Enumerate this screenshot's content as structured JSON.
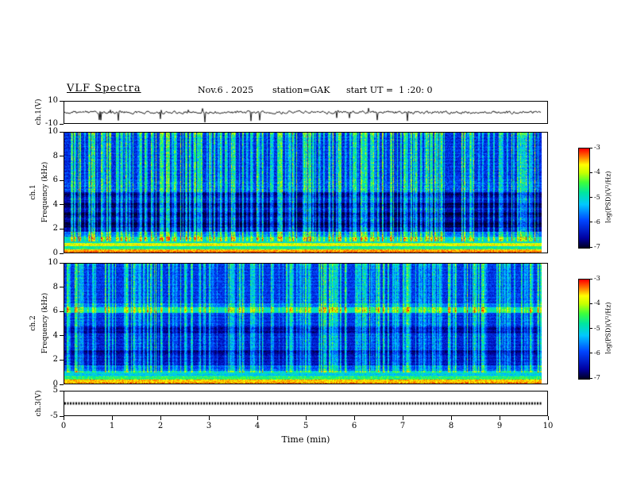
{
  "header": {
    "title": "VLF Spectra",
    "date": "Nov.6 . 2025",
    "station": "station=GAK",
    "start_ut": "start UT =  1 :20: 0"
  },
  "axes": {
    "time": {
      "label": "Time (min)",
      "min": 0,
      "max": 10,
      "ticks": [
        0,
        1,
        2,
        3,
        4,
        5,
        6,
        7,
        8,
        9,
        10
      ],
      "data_end_min": 9.85
    }
  },
  "colorbar": {
    "label": "log(PSD)(V²/Hz)",
    "ticks": [
      -3,
      -4,
      -5,
      -6,
      -7
    ],
    "vmin": -7,
    "vmax": -3,
    "colormap": [
      {
        "u": 0.0,
        "c": "#00001e"
      },
      {
        "u": 0.1,
        "c": "#0000a0"
      },
      {
        "u": 0.28,
        "c": "#0046ff"
      },
      {
        "u": 0.44,
        "c": "#00c8ff"
      },
      {
        "u": 0.56,
        "c": "#00e6a0"
      },
      {
        "u": 0.66,
        "c": "#3cff3c"
      },
      {
        "u": 0.76,
        "c": "#c8ff00"
      },
      {
        "u": 0.84,
        "c": "#ffff00"
      },
      {
        "u": 0.92,
        "c": "#ff7800"
      },
      {
        "u": 1.0,
        "c": "#ff0000"
      }
    ]
  },
  "chart_data": [
    {
      "id": "ch1_waveform",
      "type": "line",
      "ylabel": "ch.1(V)",
      "ylim": [
        -10,
        10
      ],
      "yticks": [
        10,
        -10
      ],
      "baseline_V": 0,
      "noise_amp_V": 1.1,
      "spike_prob": 0.015,
      "spike_min_V": 5,
      "spike_max_V": 9.5,
      "up_spike_prob": 0.006,
      "up_spike_V": 4,
      "seed": 11,
      "description": "Noisy ch.1 voltage trace fluctuating around 0 V with sparse impulsive downward spikes reaching about -10 V"
    },
    {
      "id": "ch1_spectrogram",
      "type": "heatmap",
      "channel": "ch.1",
      "ylabel": "Frequency (kHz)",
      "ylim": [
        0,
        10
      ],
      "fmax": 10,
      "yticks": [
        0,
        2,
        4,
        6,
        8,
        10
      ],
      "seed": 101,
      "base_level": -6.25,
      "base_noise": 0.3,
      "stripe_amp": 0.12,
      "top_boost": 0.55,
      "bands": [
        {
          "f0": 0.0,
          "f1": 0.28,
          "level": -3.4,
          "noise": 0.25
        },
        {
          "f0": 0.28,
          "f1": 0.5,
          "level": -4.7,
          "noise": 0.4
        },
        {
          "f0": 0.5,
          "f1": 0.82,
          "level": -3.8,
          "noise": 0.35
        },
        {
          "f0": 0.82,
          "f1": 1.3,
          "level": -5.0,
          "noise": 0.4
        },
        {
          "f0": 1.3,
          "f1": 1.75,
          "level": -5.7,
          "noise": 0.35
        },
        {
          "f0": 1.75,
          "f1": 2.1,
          "level": -6.5,
          "noise": 0.25
        },
        {
          "f0": 2.1,
          "f1": 2.55,
          "level": -6.9,
          "noise": 0.15
        },
        {
          "f0": 2.55,
          "f1": 2.95,
          "level": -6.55,
          "noise": 0.25
        },
        {
          "f0": 2.95,
          "f1": 3.35,
          "level": -6.9,
          "noise": 0.15
        },
        {
          "f0": 3.35,
          "f1": 3.75,
          "level": -6.5,
          "noise": 0.25
        },
        {
          "f0": 3.75,
          "f1": 4.15,
          "level": -6.85,
          "noise": 0.15
        },
        {
          "f0": 4.15,
          "f1": 4.65,
          "level": -6.4,
          "noise": 0.25
        },
        {
          "f0": 4.65,
          "f1": 5.05,
          "level": -6.75,
          "noise": 0.2
        },
        {
          "f0": 5.05,
          "f1": 6.0,
          "level": -5.95,
          "noise": 0.4
        },
        {
          "f0": 6.0,
          "f1": 10.01,
          "level": -6.1,
          "noise": 0.35
        }
      ],
      "streaks": {
        "count": 270,
        "fmin": 0.9,
        "min_amp": 0.7,
        "max_amp": 2.6,
        "max_width": 3
      },
      "description": "ch.1 spectrogram 0-10 kHz over 0-9.85 min: intense red band below ~0.8 kHz, green band near 1 kHz, alternating dark (low PSD ~ -7) horizontal bands between 2 and 5 kHz, blue background above 5 kHz crossed by dense vertical green sferic streaks, occasional orange/red streak tips near 10 kHz"
    },
    {
      "id": "ch2_spectrogram",
      "type": "heatmap",
      "channel": "ch.2",
      "ylabel": "Frequency (kHz)",
      "ylim": [
        0,
        10
      ],
      "fmax": 10,
      "yticks": [
        0,
        2,
        4,
        6,
        8,
        10
      ],
      "seed": 202,
      "base_level": -6.05,
      "base_noise": 0.32,
      "stripe_amp": 0.12,
      "top_boost": 0.35,
      "bands": [
        {
          "f0": 0.0,
          "f1": 0.3,
          "level": -3.5,
          "noise": 0.3
        },
        {
          "f0": 0.3,
          "f1": 0.6,
          "level": -4.5,
          "noise": 0.4
        },
        {
          "f0": 0.6,
          "f1": 1.05,
          "level": -5.1,
          "noise": 0.35
        },
        {
          "f0": 1.05,
          "f1": 1.5,
          "level": -5.9,
          "noise": 0.3
        },
        {
          "f0": 1.5,
          "f1": 2.45,
          "level": -6.4,
          "noise": 0.25
        },
        {
          "f0": 2.45,
          "f1": 2.8,
          "level": -6.7,
          "noise": 0.2
        },
        {
          "f0": 2.8,
          "f1": 4.2,
          "level": -6.25,
          "noise": 0.3
        },
        {
          "f0": 4.2,
          "f1": 4.8,
          "level": -6.6,
          "noise": 0.22
        },
        {
          "f0": 4.8,
          "f1": 5.9,
          "level": -6.1,
          "noise": 0.3
        },
        {
          "f0": 5.9,
          "f1": 6.35,
          "level": -4.9,
          "noise": 0.35
        },
        {
          "f0": 6.35,
          "f1": 6.7,
          "level": -5.7,
          "noise": 0.3
        },
        {
          "f0": 6.7,
          "f1": 10.01,
          "level": -6.05,
          "noise": 0.32
        }
      ],
      "streaks": {
        "count": 230,
        "fmin": 0.9,
        "min_amp": 0.6,
        "max_amp": 2.2,
        "max_width": 3
      },
      "description": "ch.2 spectrogram 0-10 kHz: red band below ~0.6 kHz, green band near 1 kHz, bright green horizontal band around 6 kHz, mostly blue background with darker bands near 2.5 and 4.5 kHz, dense vertical green sferic streaks throughout"
    },
    {
      "id": "ch3_waveform",
      "type": "line",
      "ylabel": "ch.3(V)",
      "ylim": [
        -5,
        5
      ],
      "yticks": [
        5,
        -5
      ],
      "baseline_V": 0,
      "flat": true,
      "seed": 3,
      "description": "ch.3 voltage trace flat at 0 V drawn as a thick dotted black line (no signal)"
    }
  ]
}
